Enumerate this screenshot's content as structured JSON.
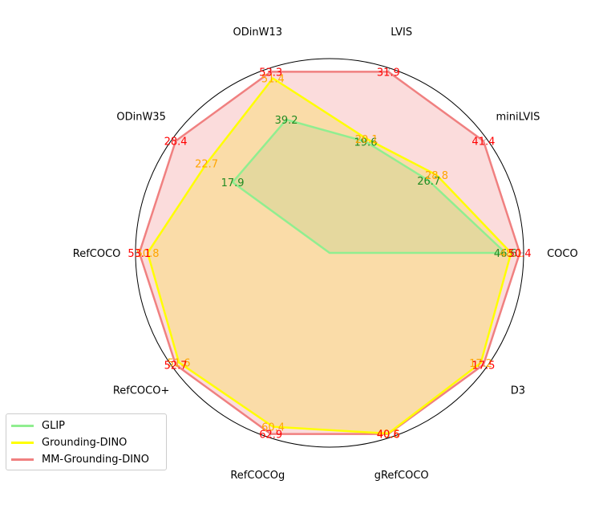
{
  "chart_data": {
    "type": "radar",
    "axes": [
      "COCO",
      "miniLVIS",
      "LVIS",
      "ODinW13",
      "ODinW35",
      "RefCOCO",
      "RefCOCO+",
      "RefCOCOg",
      "gRefCOCO",
      "D3"
    ],
    "series": [
      {
        "name": "GLIP",
        "color": "#90ee90",
        "label_color": "#228b22",
        "values": [
          46.6,
          26.7,
          19.6,
          39.2,
          17.9,
          null,
          null,
          null,
          null,
          null
        ],
        "labels": [
          "46.6",
          "26.7",
          "19.6",
          "39.2",
          "17.9",
          "",
          "",
          "",
          "",
          ""
        ]
      },
      {
        "name": "Grounding-DINO",
        "color": "#ffff00",
        "label_color": "#ffa500",
        "values": [
          48.1,
          28.8,
          20.1,
          51.4,
          22.7,
          50.8,
          51.6,
          60.4,
          40.5,
          17.2
        ],
        "labels": [
          "48.1",
          "28.8",
          "20.1",
          "51.4",
          "22.7",
          "50.8",
          "51.6",
          "60.4",
          "40.5",
          "17.2"
        ]
      },
      {
        "name": "MM-Grounding-DINO",
        "color": "#f08080",
        "label_color": "#ff0000",
        "values": [
          50.4,
          41.4,
          31.9,
          53.3,
          28.4,
          53.1,
          52.7,
          62.9,
          40.6,
          17.5
        ],
        "labels": [
          "50.4",
          "41.4",
          "31.9",
          "53.3",
          "28.4",
          "53.1",
          "52.7",
          "62.9",
          "40.6",
          "17.5"
        ]
      }
    ],
    "fill_colors": {
      "lower": "#e5d89e",
      "middle": "#fadca8",
      "upper": "#fbdcdc"
    },
    "grid": true,
    "legend": "lower-left"
  }
}
